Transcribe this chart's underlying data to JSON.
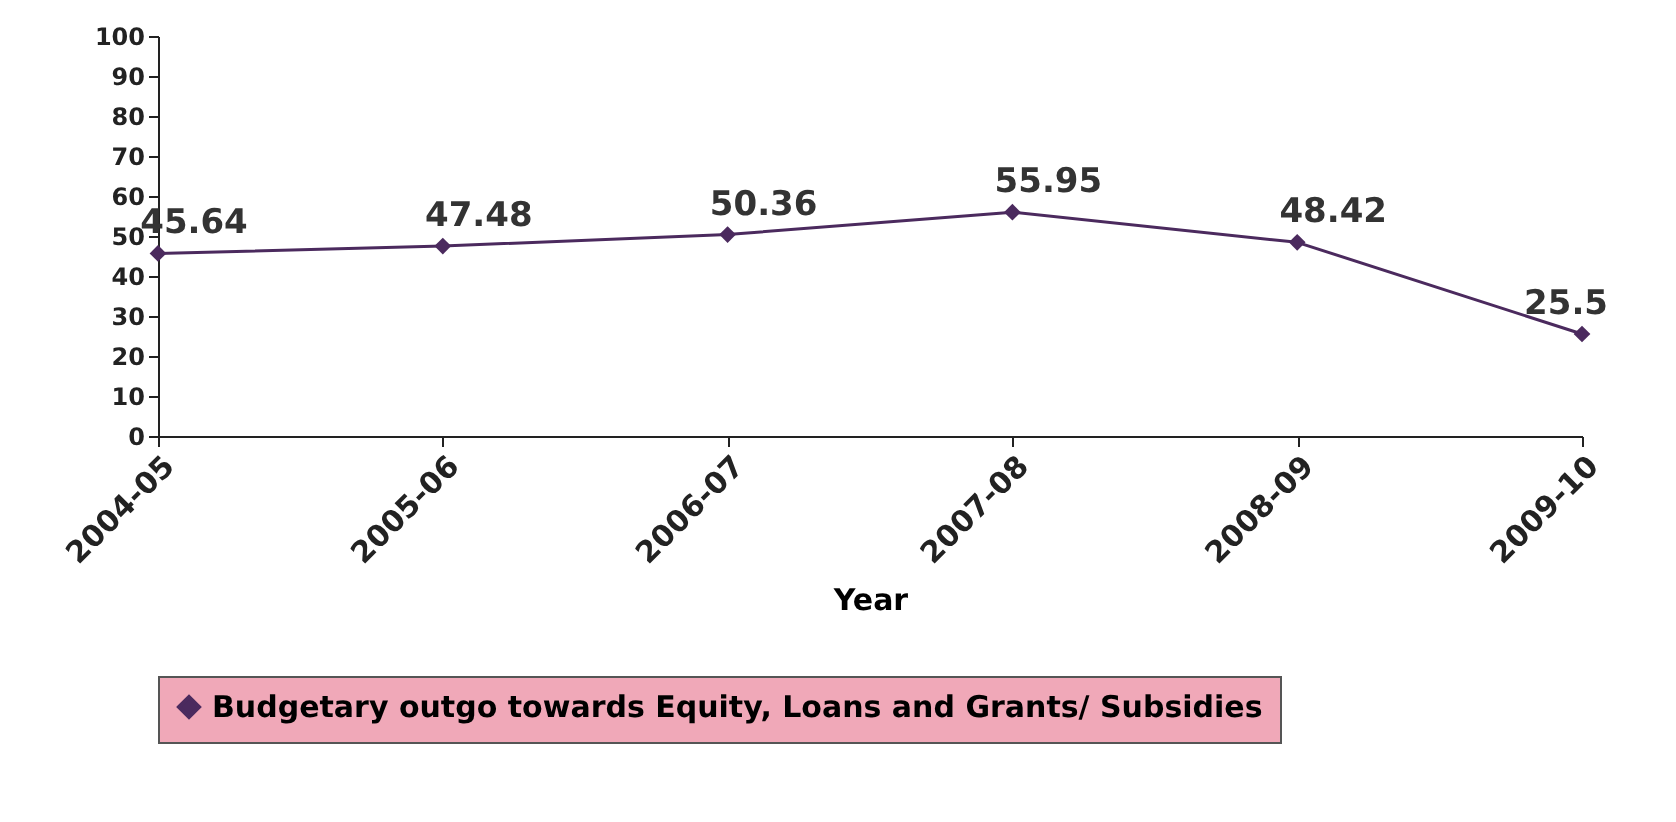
{
  "chart_data": {
    "type": "line",
    "xlabel": "Year",
    "categories": [
      "2004-05",
      "2005-06",
      "2006-07",
      "2007-08",
      "2008-09",
      "2009-10"
    ],
    "series": [
      {
        "name": "Budgetary outgo towards Equity, Loans and Grants/ Subsidies",
        "color": "#4b2a5e",
        "values": [
          45.64,
          47.48,
          50.36,
          55.95,
          48.42,
          25.5
        ]
      }
    ],
    "ylim": [
      0,
      100
    ],
    "yticks": [
      0,
      10,
      20,
      30,
      40,
      50,
      60,
      70,
      80,
      90,
      100
    ],
    "grid": false,
    "legend": "bottom",
    "marker": "diamond",
    "data_labels": true
  }
}
